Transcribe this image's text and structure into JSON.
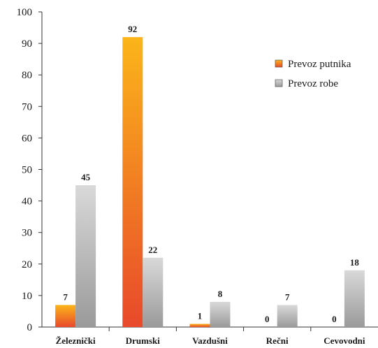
{
  "chart_data": {
    "type": "bar",
    "categories": [
      "Železnički",
      "Drumski",
      "Vazdušni",
      "Rečni",
      "Cevovodni"
    ],
    "series": [
      {
        "name": "Prevoz putnika",
        "values": [
          7,
          92,
          1,
          0,
          0
        ],
        "color": "#f07d1d",
        "gradient": [
          "#fbb51a",
          "#e8492b"
        ]
      },
      {
        "name": "Prevoz robe",
        "values": [
          45,
          22,
          8,
          7,
          18
        ],
        "color": "#bdbdbd",
        "gradient": [
          "#d9d9d9",
          "#9a9a9a"
        ]
      }
    ],
    "ylim": [
      0,
      100
    ],
    "yticks": [
      0,
      10,
      20,
      30,
      40,
      50,
      60,
      70,
      80,
      90,
      100
    ],
    "legend_position": "top-right",
    "grid": false
  }
}
